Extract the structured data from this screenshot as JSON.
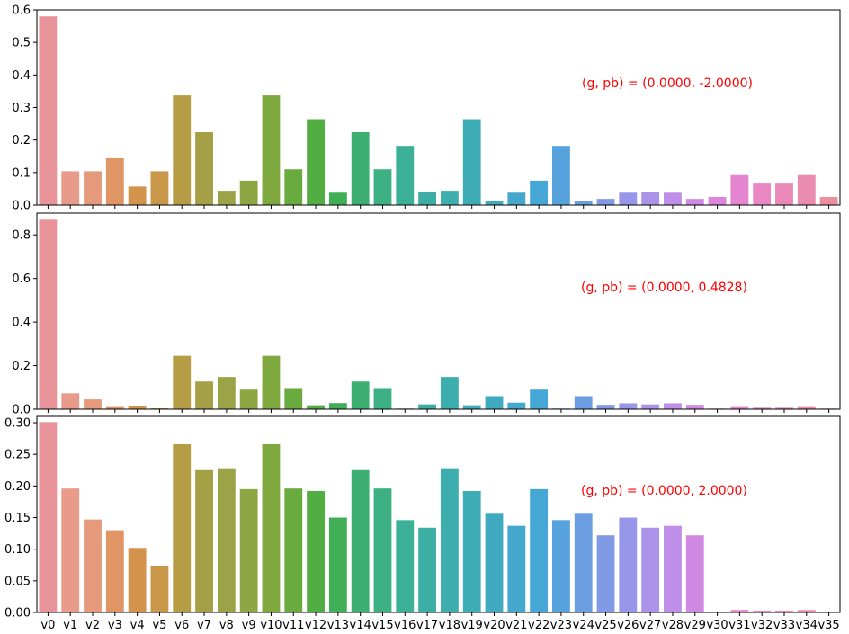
{
  "chart_data": [
    {
      "type": "bar",
      "annotation": "(g, pb) = (0.0000, -2.0000)",
      "categories": [
        "v0",
        "v1",
        "v2",
        "v3",
        "v4",
        "v5",
        "v6",
        "v7",
        "v8",
        "v9",
        "v10",
        "v11",
        "v12",
        "v13",
        "v14",
        "v15",
        "v16",
        "v17",
        "v18",
        "v19",
        "v20",
        "v21",
        "v22",
        "v23",
        "v24",
        "v25",
        "v26",
        "v27",
        "v28",
        "v29",
        "v30",
        "v31",
        "v32",
        "v33",
        "v34",
        "v35"
      ],
      "values": [
        0.58,
        0.104,
        0.104,
        0.144,
        0.057,
        0.104,
        0.337,
        0.224,
        0.044,
        0.075,
        0.337,
        0.11,
        0.264,
        0.038,
        0.224,
        0.11,
        0.182,
        0.041,
        0.044,
        0.264,
        0.013,
        0.038,
        0.075,
        0.182,
        0.013,
        0.019,
        0.038,
        0.041,
        0.038,
        0.019,
        0.025,
        0.092,
        0.066,
        0.066,
        0.092,
        0.025
      ],
      "ylim": [
        0,
        0.6
      ],
      "yticks": [
        0.0,
        0.1,
        0.2,
        0.3,
        0.4,
        0.5,
        0.6
      ],
      "ytick_labels": [
        "0.0",
        "0.1",
        "0.2",
        "0.3",
        "0.4",
        "0.5",
        "0.6"
      ]
    },
    {
      "type": "bar",
      "annotation": "(g, pb) = (0.0000, 0.4828)",
      "categories": [
        "v0",
        "v1",
        "v2",
        "v3",
        "v4",
        "v5",
        "v6",
        "v7",
        "v8",
        "v9",
        "v10",
        "v11",
        "v12",
        "v13",
        "v14",
        "v15",
        "v16",
        "v17",
        "v18",
        "v19",
        "v20",
        "v21",
        "v22",
        "v23",
        "v24",
        "v25",
        "v26",
        "v27",
        "v28",
        "v29",
        "v30",
        "v31",
        "v32",
        "v33",
        "v34",
        "v35"
      ],
      "values": [
        0.87,
        0.073,
        0.045,
        0.01,
        0.014,
        0.004,
        0.245,
        0.127,
        0.148,
        0.09,
        0.245,
        0.093,
        0.018,
        0.028,
        0.127,
        0.093,
        0.003,
        0.022,
        0.148,
        0.018,
        0.06,
        0.03,
        0.09,
        0.003,
        0.06,
        0.02,
        0.027,
        0.022,
        0.027,
        0.02,
        0.003,
        0.01,
        0.007,
        0.007,
        0.01,
        0.003
      ],
      "ylim": [
        0,
        0.9
      ],
      "yticks": [
        0.0,
        0.2,
        0.4,
        0.6,
        0.8
      ],
      "ytick_labels": [
        "0.0",
        "0.2",
        "0.4",
        "0.6",
        "0.8"
      ]
    },
    {
      "type": "bar",
      "annotation": "(g, pb) = (0.0000, 2.0000)",
      "categories": [
        "v0",
        "v1",
        "v2",
        "v3",
        "v4",
        "v5",
        "v6",
        "v7",
        "v8",
        "v9",
        "v10",
        "v11",
        "v12",
        "v13",
        "v14",
        "v15",
        "v16",
        "v17",
        "v18",
        "v19",
        "v20",
        "v21",
        "v22",
        "v23",
        "v24",
        "v25",
        "v26",
        "v27",
        "v28",
        "v29",
        "v30",
        "v31",
        "v32",
        "v33",
        "v34",
        "v35"
      ],
      "values": [
        0.301,
        0.196,
        0.147,
        0.13,
        0.102,
        0.074,
        0.266,
        0.225,
        0.228,
        0.195,
        0.266,
        0.196,
        0.192,
        0.15,
        0.225,
        0.196,
        0.146,
        0.134,
        0.228,
        0.192,
        0.156,
        0.137,
        0.195,
        0.146,
        0.156,
        0.122,
        0.15,
        0.134,
        0.137,
        0.122,
        0.001,
        0.004,
        0.003,
        0.003,
        0.004,
        0.001
      ],
      "ylim": [
        0,
        0.31
      ],
      "yticks": [
        0.0,
        0.05,
        0.1,
        0.15,
        0.2,
        0.25,
        0.3
      ],
      "ytick_labels": [
        "0.00",
        "0.05",
        "0.10",
        "0.15",
        "0.20",
        "0.25",
        "0.30"
      ]
    }
  ],
  "colors": [
    "#e8929a",
    "#e89b8b",
    "#e59b7b",
    "#e09565",
    "#d4934d",
    "#c9974a",
    "#b69d45",
    "#a5a046",
    "#9aa347",
    "#8ea744",
    "#7fa93f",
    "#6aab3f",
    "#52ad42",
    "#3fae55",
    "#3daf72",
    "#3db183",
    "#3cb096",
    "#3caea4",
    "#3caead",
    "#3eadb6",
    "#40aac1",
    "#43a8cb",
    "#46a6d5",
    "#55a2dc",
    "#6a9ee1",
    "#819ae6",
    "#9896e8",
    "#ab93e9",
    "#bf8ee8",
    "#cf89e3",
    "#dd84db",
    "#e584cf",
    "#e987c3",
    "#ea89b8",
    "#ea8cad",
    "#e9909f"
  ]
}
